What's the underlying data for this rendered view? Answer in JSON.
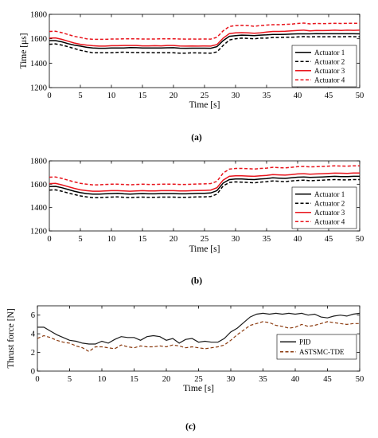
{
  "chart_data": [
    {
      "type": "line",
      "caption": "(a)",
      "xlabel": "Time [s]",
      "ylabel": "Time [μs]",
      "xlim": [
        0,
        50
      ],
      "ylim": [
        1200,
        1800
      ],
      "xticks": [
        "0",
        "5",
        "10",
        "15",
        "20",
        "25",
        "30",
        "35",
        "40",
        "45",
        "50"
      ],
      "yticks": [
        "1200",
        "1400",
        "1600",
        "1800"
      ],
      "grid": false,
      "legend_position": "bottom-right",
      "x": [
        0,
        1,
        2,
        3,
        4,
        5,
        6,
        7,
        8,
        9,
        10,
        11,
        12,
        13,
        14,
        15,
        16,
        17,
        18,
        19,
        20,
        21,
        22,
        23,
        24,
        25,
        26,
        27,
        28,
        29,
        30,
        31,
        32,
        33,
        34,
        35,
        36,
        37,
        38,
        39,
        40,
        41,
        42,
        43,
        44,
        45,
        46,
        47,
        48,
        49,
        50
      ],
      "series": [
        {
          "name": "Actuator 1",
          "color": "#000000",
          "dash": "solid",
          "values": [
            1585,
            1585,
            1575,
            1560,
            1548,
            1540,
            1530,
            1525,
            1522,
            1522,
            1525,
            1525,
            1525,
            1528,
            1527,
            1524,
            1524,
            1525,
            1524,
            1526,
            1527,
            1523,
            1522,
            1523,
            1523,
            1523,
            1522,
            1535,
            1585,
            1620,
            1625,
            1630,
            1628,
            1625,
            1630,
            1632,
            1635,
            1635,
            1636,
            1638,
            1640,
            1640,
            1640,
            1642,
            1641,
            1641,
            1641,
            1641,
            1641,
            1641,
            1640
          ]
        },
        {
          "name": "Actuator 2",
          "color": "#000000",
          "dash": "dashed",
          "values": [
            1555,
            1558,
            1548,
            1535,
            1520,
            1505,
            1495,
            1485,
            1485,
            1485,
            1485,
            1488,
            1490,
            1488,
            1487,
            1487,
            1487,
            1485,
            1486,
            1485,
            1485,
            1482,
            1482,
            1485,
            1484,
            1483,
            1482,
            1492,
            1545,
            1590,
            1600,
            1605,
            1603,
            1600,
            1605,
            1605,
            1610,
            1610,
            1612,
            1612,
            1615,
            1618,
            1615,
            1617,
            1616,
            1617,
            1617,
            1616,
            1618,
            1617,
            1617
          ]
        },
        {
          "name": "Actuator 3",
          "color": "#e8141c",
          "dash": "solid",
          "values": [
            1605,
            1607,
            1595,
            1580,
            1565,
            1555,
            1548,
            1543,
            1540,
            1540,
            1543,
            1543,
            1545,
            1545,
            1545,
            1542,
            1542,
            1543,
            1542,
            1545,
            1545,
            1541,
            1540,
            1541,
            1540,
            1541,
            1540,
            1552,
            1605,
            1642,
            1648,
            1650,
            1648,
            1645,
            1648,
            1655,
            1660,
            1660,
            1662,
            1665,
            1668,
            1670,
            1665,
            1668,
            1667,
            1668,
            1670,
            1668,
            1670,
            1669,
            1670
          ]
        },
        {
          "name": "Actuator 4",
          "color": "#e8141c",
          "dash": "dashed",
          "values": [
            1660,
            1662,
            1650,
            1635,
            1620,
            1610,
            1600,
            1595,
            1595,
            1595,
            1598,
            1598,
            1600,
            1600,
            1600,
            1598,
            1598,
            1598,
            1600,
            1600,
            1600,
            1598,
            1597,
            1598,
            1597,
            1598,
            1597,
            1612,
            1665,
            1700,
            1708,
            1710,
            1708,
            1702,
            1708,
            1712,
            1715,
            1715,
            1718,
            1720,
            1725,
            1728,
            1722,
            1725,
            1724,
            1725,
            1726,
            1725,
            1726,
            1726,
            1726
          ]
        }
      ]
    },
    {
      "type": "line",
      "caption": "(b)",
      "xlabel": "Time [s]",
      "ylabel": "",
      "xlim": [
        0,
        50
      ],
      "ylim": [
        1200,
        1800
      ],
      "xticks": [
        "0",
        "5",
        "10",
        "15",
        "20",
        "25",
        "30",
        "35",
        "40",
        "45",
        "50"
      ],
      "yticks": [
        "1200",
        "1400",
        "1600",
        "1800"
      ],
      "grid": false,
      "legend_position": "bottom-right",
      "x": [
        0,
        1,
        2,
        3,
        4,
        5,
        6,
        7,
        8,
        9,
        10,
        11,
        12,
        13,
        14,
        15,
        16,
        17,
        18,
        19,
        20,
        21,
        22,
        23,
        24,
        25,
        26,
        27,
        28,
        29,
        30,
        31,
        32,
        33,
        34,
        35,
        36,
        37,
        38,
        39,
        40,
        41,
        42,
        43,
        44,
        45,
        46,
        47,
        48,
        49,
        50
      ],
      "series": [
        {
          "name": "Actuator 1",
          "color": "#000000",
          "dash": "solid",
          "values": [
            1580,
            1582,
            1570,
            1555,
            1540,
            1528,
            1520,
            1515,
            1515,
            1518,
            1520,
            1522,
            1518,
            1515,
            1518,
            1520,
            1518,
            1518,
            1520,
            1520,
            1520,
            1518,
            1518,
            1520,
            1522,
            1522,
            1525,
            1545,
            1610,
            1640,
            1645,
            1645,
            1642,
            1640,
            1645,
            1648,
            1655,
            1652,
            1650,
            1655,
            1660,
            1662,
            1658,
            1660,
            1662,
            1665,
            1668,
            1666,
            1665,
            1668,
            1668
          ]
        },
        {
          "name": "Actuator 2",
          "color": "#000000",
          "dash": "dashed",
          "values": [
            1550,
            1552,
            1540,
            1525,
            1512,
            1500,
            1492,
            1485,
            1485,
            1488,
            1490,
            1492,
            1488,
            1485,
            1488,
            1490,
            1488,
            1488,
            1490,
            1490,
            1490,
            1488,
            1488,
            1490,
            1492,
            1492,
            1495,
            1515,
            1585,
            1615,
            1620,
            1618,
            1615,
            1612,
            1618,
            1622,
            1628,
            1625,
            1622,
            1628,
            1632,
            1635,
            1630,
            1632,
            1635,
            1638,
            1640,
            1638,
            1637,
            1640,
            1640
          ]
        },
        {
          "name": "Actuator 3",
          "color": "#e8141c",
          "dash": "solid",
          "values": [
            1605,
            1607,
            1595,
            1580,
            1565,
            1552,
            1545,
            1540,
            1540,
            1542,
            1545,
            1545,
            1542,
            1540,
            1542,
            1545,
            1542,
            1542,
            1545,
            1545,
            1545,
            1542,
            1542,
            1545,
            1546,
            1547,
            1550,
            1570,
            1635,
            1668,
            1672,
            1672,
            1670,
            1668,
            1672,
            1675,
            1682,
            1680,
            1678,
            1682,
            1688,
            1690,
            1686,
            1688,
            1690,
            1693,
            1695,
            1694,
            1693,
            1696,
            1696
          ]
        },
        {
          "name": "Actuator 4",
          "color": "#e8141c",
          "dash": "dashed",
          "values": [
            1660,
            1662,
            1650,
            1635,
            1620,
            1608,
            1600,
            1595,
            1595,
            1598,
            1600,
            1600,
            1598,
            1595,
            1598,
            1600,
            1598,
            1598,
            1600,
            1600,
            1600,
            1598,
            1598,
            1600,
            1602,
            1603,
            1606,
            1625,
            1695,
            1730,
            1735,
            1735,
            1733,
            1730,
            1735,
            1738,
            1745,
            1742,
            1740,
            1745,
            1750,
            1752,
            1748,
            1750,
            1752,
            1755,
            1758,
            1756,
            1755,
            1758,
            1758
          ]
        }
      ]
    },
    {
      "type": "line",
      "caption": "(c)",
      "xlabel": "Time [s]",
      "ylabel": "Thrust force [N]",
      "xlim": [
        0,
        50
      ],
      "ylim": [
        0,
        7
      ],
      "xticks": [
        "0",
        "5",
        "10",
        "15",
        "20",
        "25",
        "30",
        "35",
        "40",
        "45",
        "50"
      ],
      "yticks": [
        "0",
        "2",
        "4",
        "6"
      ],
      "grid": false,
      "legend_position": "right",
      "x": [
        0,
        1,
        2,
        3,
        4,
        5,
        6,
        7,
        8,
        9,
        10,
        11,
        12,
        13,
        14,
        15,
        16,
        17,
        18,
        19,
        20,
        21,
        22,
        23,
        24,
        25,
        26,
        27,
        28,
        29,
        30,
        31,
        32,
        33,
        34,
        35,
        36,
        37,
        38,
        39,
        40,
        41,
        42,
        43,
        44,
        45,
        46,
        47,
        48,
        49,
        50
      ],
      "series": [
        {
          "name": "PID",
          "color": "#1a1a1a",
          "dash": "solid",
          "values": [
            4.7,
            4.7,
            4.3,
            3.9,
            3.6,
            3.3,
            3.2,
            3.0,
            2.9,
            2.9,
            3.2,
            3.0,
            3.4,
            3.7,
            3.6,
            3.6,
            3.3,
            3.7,
            3.8,
            3.7,
            3.3,
            3.5,
            3.0,
            3.4,
            3.5,
            3.1,
            3.2,
            3.1,
            3.1,
            3.5,
            4.2,
            4.6,
            5.2,
            5.8,
            6.1,
            6.2,
            6.1,
            6.2,
            6.1,
            6.2,
            6.1,
            6.2,
            6.0,
            6.1,
            5.8,
            5.7,
            5.9,
            6.0,
            5.9,
            6.1,
            6.2
          ]
        },
        {
          "name": "ASTSMC-TDE",
          "color": "#8b3a0e",
          "dash": "dashed",
          "values": [
            3.5,
            3.8,
            3.6,
            3.3,
            3.1,
            3.0,
            2.7,
            2.5,
            2.1,
            2.6,
            2.6,
            2.5,
            2.4,
            2.8,
            2.6,
            2.5,
            2.7,
            2.6,
            2.6,
            2.7,
            2.6,
            2.8,
            2.7,
            2.5,
            2.6,
            2.5,
            2.4,
            2.5,
            2.6,
            2.8,
            3.3,
            3.9,
            4.4,
            4.9,
            5.1,
            5.3,
            5.2,
            4.9,
            4.8,
            4.6,
            4.7,
            5.0,
            4.8,
            4.9,
            5.1,
            5.3,
            5.2,
            5.1,
            5.0,
            5.1,
            5.1
          ]
        }
      ]
    }
  ]
}
